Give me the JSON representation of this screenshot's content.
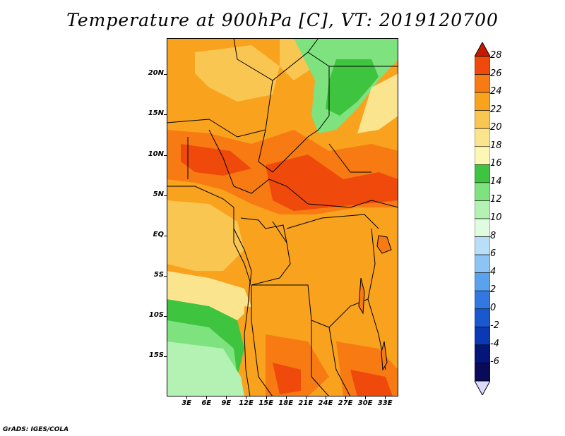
{
  "title": "Temperature at 900hPa [C], VT: 2019120700",
  "credit": "GrADS: IGES/COLA",
  "map": {
    "lon_range": [
      0,
      35
    ],
    "lat_range": [
      -20,
      24.5
    ],
    "lat_labels": [
      "20N",
      "15N",
      "10N",
      "5N",
      "EQ",
      "5S",
      "10S",
      "15S"
    ],
    "lat_values": [
      20,
      15,
      10,
      5,
      0,
      -5,
      -10,
      -15
    ],
    "lon_labels": [
      "3E",
      "6E",
      "9E",
      "12E",
      "15E",
      "18E",
      "21E",
      "24E",
      "27E",
      "30E",
      "33E"
    ],
    "lon_values": [
      3,
      6,
      9,
      12,
      15,
      18,
      21,
      24,
      27,
      30,
      33
    ]
  },
  "colorbar": {
    "levels": [
      "28",
      "26",
      "24",
      "22",
      "20",
      "18",
      "16",
      "14",
      "12",
      "10",
      "8",
      "6",
      "4",
      "2",
      "0",
      "-2",
      "-4",
      "-6"
    ],
    "colors": [
      "#d42a00",
      "#ef4a0c",
      "#f77b12",
      "#f9a21e",
      "#f9c652",
      "#fbe48e",
      "#fdf7b6",
      "#3fc43f",
      "#7ee27e",
      "#b4f2b4",
      "#dffbe0",
      "#b8def8",
      "#8ec4f3",
      "#5aa2ec",
      "#3179e0",
      "#1a58cf",
      "#0b38b4",
      "#06157a",
      "#0a0a5a"
    ],
    "top_color": "#c41a00",
    "bottom_color": "#d9dcff"
  }
}
